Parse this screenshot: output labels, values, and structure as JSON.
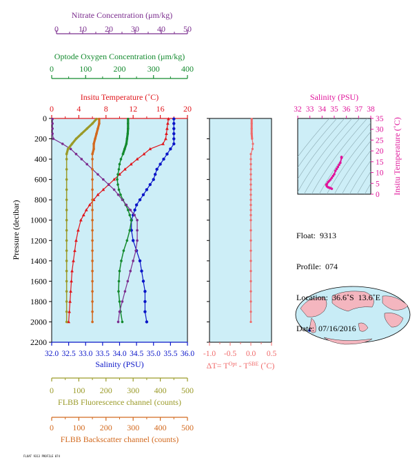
{
  "colors": {
    "nitrate": "#7b2d8e",
    "oxygen": "#138a2e",
    "temperature": "#e0141a",
    "salinity": "#0a15c8",
    "fluorescence": "#9a9a28",
    "backscatter": "#d2691e",
    "delta": "#f06a6a",
    "ts": "#e0149a",
    "plot_bg": "#cdeef7"
  },
  "info": {
    "float": "Float:  9313",
    "profile": "Profile:  074",
    "location": "Location:  36.6˚S  13.6˚E",
    "date": "Date:  07/16/2016"
  },
  "footnote": "FLOAT 9313 PROFILE 074",
  "chart_data": [
    {
      "type": "line",
      "panel": "main-profile",
      "ylabel": "Pressure (decibar)",
      "ylim": [
        0,
        2200
      ],
      "yticks": [
        0,
        200,
        400,
        600,
        800,
        1000,
        1200,
        1400,
        1600,
        1800,
        2000,
        2200
      ],
      "axes": {
        "nitrate": {
          "title": "Nitrate Concentration (μm/kg)",
          "range": [
            0,
            50
          ],
          "ticks": [
            0,
            10,
            20,
            30,
            40,
            50
          ]
        },
        "oxygen": {
          "title": "Optode Oxygen Concentration (μm/kg)",
          "range": [
            0,
            400
          ],
          "ticks": [
            0,
            100,
            200,
            300,
            400
          ]
        },
        "temperature": {
          "title": "Insitu Temperature (˚C)",
          "range": [
            0,
            20
          ],
          "ticks": [
            0,
            4,
            8,
            12,
            16,
            20
          ]
        },
        "salinity": {
          "title": "Salinity (PSU)",
          "range": [
            32,
            36
          ],
          "ticks": [
            "32.0",
            "32.5",
            "33.0",
            "33.5",
            "34.0",
            "34.5",
            "35.0",
            "35.5",
            "36.0"
          ]
        },
        "fluorescence": {
          "title": "FLBB Fluorescence channel (counts)",
          "range": [
            0,
            500
          ],
          "ticks": [
            0,
            100,
            200,
            300,
            400,
            500
          ]
        },
        "backscatter": {
          "title": "FLBB Backscatter channel (counts)",
          "range": [
            0,
            500
          ],
          "ticks": [
            0,
            100,
            200,
            300,
            400,
            500
          ]
        }
      },
      "series": [
        {
          "key": "temperature",
          "marker": "triangle",
          "pressure": [
            5,
            50,
            100,
            150,
            200,
            250,
            300,
            350,
            400,
            450,
            500,
            550,
            600,
            650,
            700,
            750,
            800,
            850,
            900,
            950,
            1000,
            1100,
            1200,
            1300,
            1400,
            1500,
            1600,
            1700,
            1800,
            1900,
            2000
          ],
          "values": [
            17.2,
            17.1,
            17.0,
            16.9,
            16.8,
            16.4,
            14.5,
            13.6,
            12.6,
            11.7,
            10.8,
            10.0,
            9.2,
            8.4,
            7.6,
            6.8,
            6.2,
            5.6,
            5.1,
            4.7,
            4.3,
            3.9,
            3.6,
            3.4,
            3.2,
            3.0,
            2.9,
            2.8,
            2.7,
            2.6,
            2.5
          ]
        },
        {
          "key": "salinity",
          "marker": "circle",
          "pressure": [
            5,
            50,
            100,
            150,
            200,
            250,
            300,
            350,
            400,
            450,
            500,
            550,
            600,
            650,
            700,
            750,
            800,
            850,
            900,
            950,
            1000,
            1100,
            1200,
            1300,
            1400,
            1500,
            1600,
            1700,
            1800,
            1900,
            2000
          ],
          "values": [
            35.6,
            35.6,
            35.6,
            35.6,
            35.6,
            35.6,
            35.5,
            35.4,
            35.3,
            35.2,
            35.1,
            35.05,
            35.0,
            34.9,
            34.8,
            34.7,
            34.6,
            34.5,
            34.45,
            34.4,
            34.35,
            34.35,
            34.4,
            34.5,
            34.6,
            34.65,
            34.7,
            34.75,
            34.75,
            34.75,
            34.8
          ]
        },
        {
          "key": "oxygen",
          "marker": "circle",
          "pressure": [
            5,
            50,
            100,
            150,
            200,
            250,
            300,
            350,
            400,
            450,
            500,
            550,
            600,
            650,
            700,
            750,
            800,
            850,
            900,
            950,
            1000,
            1100,
            1200,
            1300,
            1400,
            1500,
            1600,
            1700,
            1800,
            1900,
            2000
          ],
          "values": [
            225,
            225,
            225,
            224,
            222,
            220,
            215,
            210,
            204,
            200,
            198,
            195,
            193,
            195,
            198,
            203,
            210,
            218,
            225,
            230,
            235,
            230,
            222,
            212,
            205,
            200,
            198,
            197,
            200,
            203,
            208
          ]
        },
        {
          "key": "nitrate",
          "marker": "circle",
          "pressure": [
            5,
            50,
            100,
            150,
            200,
            250,
            300,
            350,
            400,
            450,
            500,
            550,
            600,
            650,
            700,
            750,
            800,
            850,
            900,
            950,
            1000,
            1100,
            1200,
            1300,
            1400,
            1500,
            1600,
            1700,
            1800,
            1900,
            2000
          ],
          "values": [
            0.3,
            0.3,
            0.3,
            0.3,
            0.6,
            4.0,
            7.0,
            9.0,
            11.0,
            13.0,
            15.0,
            17.0,
            19.0,
            21.0,
            23.0,
            24.5,
            26.0,
            27.5,
            29.0,
            30.5,
            31.5,
            31.5,
            31.5,
            31.0,
            30.0,
            29.0,
            28.0,
            27.0,
            26.0,
            25.0,
            24.5
          ]
        },
        {
          "key": "fluorescence",
          "marker": "circle",
          "pressure": [
            5,
            50,
            100,
            150,
            200,
            250,
            300,
            350,
            400,
            500,
            600,
            700,
            800,
            900,
            1000,
            1100,
            1200,
            1300,
            1400,
            1500,
            1600,
            1700,
            1800,
            1900,
            2000
          ],
          "values": [
            165,
            150,
            130,
            110,
            90,
            75,
            60,
            55,
            55,
            55,
            55,
            55,
            55,
            55,
            55,
            55,
            55,
            55,
            55,
            55,
            55,
            55,
            55,
            55,
            55
          ]
        },
        {
          "key": "backscatter",
          "marker": "circle",
          "pressure": [
            5,
            50,
            100,
            150,
            200,
            250,
            300,
            350,
            400,
            500,
            600,
            700,
            800,
            900,
            1000,
            1100,
            1200,
            1300,
            1400,
            1500,
            1600,
            1700,
            1800,
            1900,
            2000
          ],
          "values": [
            175,
            175,
            170,
            165,
            160,
            155,
            155,
            150,
            150,
            150,
            150,
            150,
            150,
            150,
            150,
            150,
            150,
            150,
            150,
            150,
            150,
            150,
            150,
            150,
            150
          ]
        }
      ]
    },
    {
      "type": "line",
      "panel": "delta-t",
      "xlabel_parts": [
        "ΔT= T",
        "Opt",
        " - T",
        "SBE",
        " (˚C)"
      ],
      "xlim": [
        -1.0,
        0.5
      ],
      "xticks": [
        "-1.0",
        "-0.5",
        "0.0",
        "0.5"
      ],
      "ylim": [
        0,
        2200
      ],
      "pressure": [
        5,
        50,
        100,
        150,
        200,
        250,
        300,
        350,
        400,
        450,
        500,
        550,
        600,
        650,
        700,
        750,
        800,
        850,
        900,
        950,
        1000,
        1100,
        1200,
        1300,
        1400,
        1500,
        1600,
        1700,
        1800,
        1900,
        2000
      ],
      "values": [
        0.02,
        0.02,
        0.02,
        0.02,
        0.03,
        0.05,
        0.04,
        0.0,
        0.0,
        0.0,
        0.0,
        0.0,
        0.0,
        0.0,
        0.0,
        0.0,
        0.0,
        0.0,
        0.0,
        0.0,
        0.0,
        0.0,
        0.0,
        0.0,
        0.0,
        0.0,
        0.0,
        0.0,
        0.0,
        0.0,
        0.0
      ]
    },
    {
      "type": "line",
      "panel": "ts-diagram",
      "xlabel": "Salinity (PSU)",
      "ylabel": "Insitu Temperature (˚C)",
      "xlim": [
        32,
        38
      ],
      "xticks": [
        32,
        33,
        34,
        35,
        36,
        37,
        38
      ],
      "ylim": [
        0,
        35
      ],
      "yticks": [
        0,
        5,
        10,
        15,
        20,
        25,
        30,
        35
      ],
      "salinity": [
        35.6,
        35.6,
        35.6,
        35.5,
        35.4,
        35.3,
        35.2,
        35.1,
        35.0,
        34.9,
        34.8,
        34.7,
        34.6,
        34.5,
        34.4,
        34.35,
        34.4,
        34.5,
        34.6,
        34.7,
        34.8
      ],
      "temperature": [
        17.2,
        17.0,
        16.8,
        14.5,
        13.6,
        12.6,
        11.7,
        10.8,
        9.2,
        8.4,
        7.6,
        6.8,
        6.2,
        5.6,
        4.7,
        4.3,
        3.6,
        3.2,
        3.0,
        2.8,
        2.5
      ]
    }
  ]
}
